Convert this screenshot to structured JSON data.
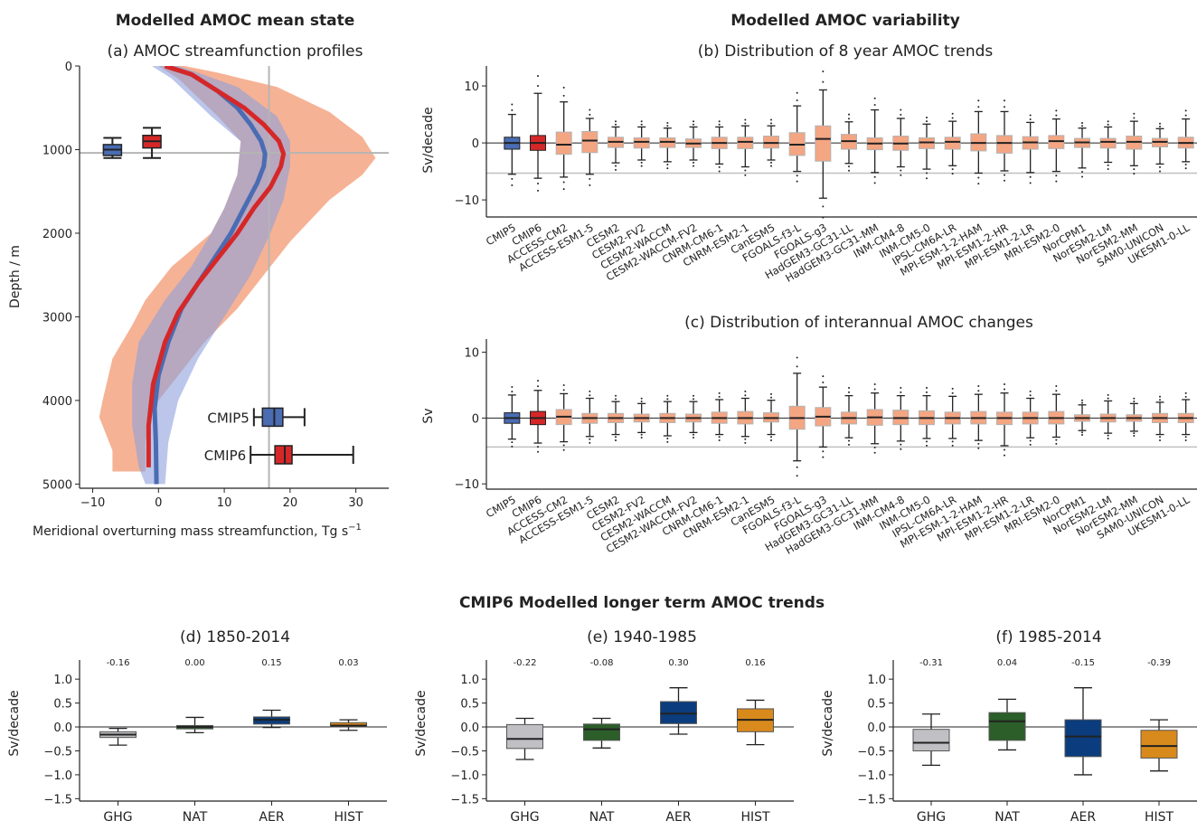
{
  "headings": {
    "mean_state": "Modelled AMOC mean state",
    "variability": "Modelled AMOC variability",
    "longer_term": "CMIP6 Modelled longer term AMOC trends"
  },
  "colors": {
    "cmip5": "#4a6cb3",
    "cmip6": "#d62728",
    "salmon": "#f4a582",
    "GHG": "#c0c0c4",
    "NAT": "#2b5e28",
    "AER": "#0b3d7e",
    "HIST": "#d98a1c"
  },
  "chart_data": [
    {
      "id": "a",
      "type": "line",
      "title": "(a) AMOC streamfunction profiles",
      "xlabel": "Meridional overturning mass streamfunction, Tg s",
      "xlabel_sup": "−1",
      "ylabel": "Depth / m",
      "xlim": [
        -12,
        35
      ],
      "ylim": [
        5050,
        0
      ],
      "xticks": [
        -10,
        0,
        10,
        20,
        30
      ],
      "yticks": [
        0,
        1000,
        2000,
        3000,
        4000,
        5000
      ],
      "reference_lines": {
        "x": 16.8,
        "depth": 1040
      },
      "series": [
        {
          "name": "CMIP5",
          "mean": [
            [
              1,
              0
            ],
            [
              5,
              100
            ],
            [
              9,
              300
            ],
            [
              12,
              500
            ],
            [
              14,
              700
            ],
            [
              15.6,
              900
            ],
            [
              16.2,
              1050
            ],
            [
              16,
              1200
            ],
            [
              15,
              1400
            ],
            [
              13,
              1700
            ],
            [
              11,
              2000
            ],
            [
              8.5,
              2300
            ],
            [
              6,
              2600
            ],
            [
              3.5,
              2900
            ],
            [
              1.5,
              3300
            ],
            [
              0,
              3700
            ],
            [
              -0.6,
              4100
            ],
            [
              -0.4,
              4500
            ],
            [
              -0.3,
              5000
            ]
          ],
          "envelope": [
            [
              -1,
              0
            ],
            [
              2,
              150
            ],
            [
              8,
              600
            ],
            [
              12.5,
              900
            ],
            [
              12,
              1300
            ],
            [
              10,
              1700
            ],
            [
              8,
              2000
            ],
            [
              5,
              2400
            ],
            [
              1,
              2800
            ],
            [
              -3,
              3300
            ],
            [
              -4,
              3800
            ],
            [
              -4,
              4300
            ],
            [
              -3,
              4800
            ],
            [
              -2,
              5000
            ],
            [
              1,
              5000
            ],
            [
              1.5,
              4500
            ],
            [
              3,
              4000
            ],
            [
              6,
              3500
            ],
            [
              10,
              3000
            ],
            [
              14,
              2500
            ],
            [
              17,
              2000
            ],
            [
              19,
              1600
            ],
            [
              20,
              1200
            ],
            [
              20,
              900
            ],
            [
              18,
              600
            ],
            [
              12,
              250
            ],
            [
              6,
              80
            ],
            [
              3,
              0
            ]
          ]
        },
        {
          "name": "CMIP6",
          "mean": [
            [
              1,
              0
            ],
            [
              5,
              100
            ],
            [
              9,
              300
            ],
            [
              13,
              500
            ],
            [
              16,
              700
            ],
            [
              18.3,
              900
            ],
            [
              19,
              1050
            ],
            [
              18.6,
              1200
            ],
            [
              17,
              1450
            ],
            [
              14.5,
              1700
            ],
            [
              12,
              2000
            ],
            [
              9,
              2300
            ],
            [
              6,
              2600
            ],
            [
              3,
              2950
            ],
            [
              1,
              3300
            ],
            [
              -0.8,
              3800
            ],
            [
              -1.5,
              4300
            ],
            [
              -1.5,
              4800
            ]
          ],
          "envelope": [
            [
              0,
              0
            ],
            [
              3,
              150
            ],
            [
              9,
              600
            ],
            [
              12.5,
              900
            ],
            [
              12,
              1300
            ],
            [
              10,
              1700
            ],
            [
              8,
              2000
            ],
            [
              2,
              2400
            ],
            [
              -2,
              2800
            ],
            [
              -4,
              3100
            ],
            [
              -7,
              3500
            ],
            [
              -8.5,
              4000
            ],
            [
              -9,
              4200
            ],
            [
              -7,
              4600
            ],
            [
              -7,
              4850
            ],
            [
              -2,
              4850
            ],
            [
              -2,
              4500
            ],
            [
              -1,
              4100
            ],
            [
              3,
              3700
            ],
            [
              7,
              3300
            ],
            [
              12,
              2900
            ],
            [
              16,
              2500
            ],
            [
              20,
              2100
            ],
            [
              26,
              1600
            ],
            [
              31,
              1300
            ],
            [
              33,
              1100
            ],
            [
              31,
              850
            ],
            [
              26,
              550
            ],
            [
              18,
              250
            ],
            [
              9,
              80
            ],
            [
              4,
              0
            ]
          ]
        }
      ],
      "boxplots": [
        {
          "name": "CMIP5",
          "axis": "depth",
          "min": 860,
          "q1": 940,
          "median": 1000,
          "q3": 1070,
          "max": 1100
        },
        {
          "name": "CMIP6",
          "axis": "depth",
          "min": 740,
          "q1": 830,
          "median": 900,
          "q3": 980,
          "max": 1100
        },
        {
          "name": "CMIP5",
          "axis": "strength",
          "min": 14.5,
          "q1": 15.8,
          "median": 17.6,
          "q3": 18.9,
          "max": 22.2
        },
        {
          "name": "CMIP6",
          "axis": "strength",
          "min": 14,
          "q1": 17.7,
          "median": 19.2,
          "q3": 20.3,
          "max": 29.6
        }
      ]
    },
    {
      "id": "b",
      "type": "box",
      "title": "(b) Distribution of 8 year AMOC trends",
      "ylabel": "Sv/decade",
      "ylim": [
        -13,
        13.5
      ],
      "yticks": [
        -10,
        0,
        10
      ],
      "hline": -5.3,
      "categories": [
        "CMIP5",
        "CMIP6",
        "ACCESS-CM2",
        "ACCESS-ESM1-5",
        "CESM2",
        "CESM2-FV2",
        "CESM2-WACCM",
        "CESM2-WACCM-FV2",
        "CNRM-CM6-1",
        "CNRM-ESM2-1",
        "CanESM5",
        "FGOALS-f3-L",
        "FGOALS-g3",
        "HadGEM3-GC31-LL",
        "HadGEM3-GC31-MM",
        "INM-CM4-8",
        "INM-CM5-0",
        "IPSL-CM6A-LR",
        "MPI-ESM-1-2-HAM",
        "MPI-ESM1-2-HR",
        "MPI-ESM1-2-LR",
        "MRI-ESM2-0",
        "NorCPM1",
        "NorESM2-LM",
        "NorESM2-MM",
        "SAM0-UNICON",
        "UKESM1-0-LL"
      ],
      "boxes": [
        [
          -5.5,
          -1.1,
          0,
          1,
          5
        ],
        [
          -6.2,
          -1.3,
          0,
          1.3,
          8.7
        ],
        [
          -6,
          -2,
          -0.3,
          1.9,
          7.2
        ],
        [
          -5.5,
          -1.7,
          0.4,
          2,
          4.3
        ],
        [
          -3.5,
          -0.8,
          0.2,
          1,
          2.8
        ],
        [
          -3,
          -0.9,
          0.2,
          0.9,
          2.8
        ],
        [
          -3.3,
          -0.8,
          0.2,
          0.9,
          2.6
        ],
        [
          -3,
          -0.8,
          -0.1,
          0.7,
          2.8
        ],
        [
          -3.7,
          -1,
          0,
          1,
          2.8
        ],
        [
          -4.2,
          -1,
          0.2,
          1,
          3
        ],
        [
          -3,
          -0.9,
          0,
          1.2,
          3
        ],
        [
          -5,
          -2.2,
          -0.3,
          1.8,
          6.5
        ],
        [
          -9.7,
          -3.2,
          0.7,
          3,
          9.3
        ],
        [
          -3.6,
          -1.1,
          0.3,
          1.5,
          3.7
        ],
        [
          -5.2,
          -1.2,
          -0.1,
          0.9,
          5.8
        ],
        [
          -4.2,
          -1.3,
          -0.1,
          1.2,
          4.3
        ],
        [
          -4.6,
          -1,
          0.1,
          0.9,
          3.3
        ],
        [
          -4,
          -1.1,
          0.2,
          1,
          3.8
        ],
        [
          -5.3,
          -1.4,
          0,
          1.6,
          5.5
        ],
        [
          -4.9,
          -1.8,
          0,
          1.3,
          5.5
        ],
        [
          -5.2,
          -1.1,
          0.1,
          1.1,
          3.6
        ],
        [
          -5,
          -1,
          0.3,
          1.3,
          4.2
        ],
        [
          -4.4,
          -0.8,
          0.1,
          0.8,
          2.6
        ],
        [
          -3.4,
          -0.9,
          0.2,
          0.8,
          2.8
        ],
        [
          -4,
          -1.1,
          0.2,
          1.2,
          3.8
        ],
        [
          -3.7,
          -0.7,
          0.2,
          0.8,
          2.5
        ],
        [
          -3.3,
          -0.9,
          0,
          1,
          4.2
        ]
      ]
    },
    {
      "id": "c",
      "type": "box",
      "title": "(c) Distribution of interannual AMOC changes",
      "ylabel": "Sv",
      "ylim": [
        -10.8,
        12
      ],
      "yticks": [
        -10,
        0,
        10
      ],
      "hline": -4.4,
      "categories": [
        "CMIP5",
        "CMIP6",
        "ACCESS-CM2",
        "ACCESS-ESM1-5",
        "CESM2",
        "CESM2-FV2",
        "CESM2-WACCM",
        "CESM2-WACCM-FV2",
        "CNRM-CM6-1",
        "CNRM-ESM2-1",
        "CanESM5",
        "FGOALS-f3-L",
        "FGOALS-g3",
        "HadGEM3-GC31-LL",
        "HadGEM3-GC31-MM",
        "INM-CM4-8",
        "INM-CM5-0",
        "IPSL-CM6A-LR",
        "MPI-ESM-1-2-HAM",
        "MPI-ESM1-2-HR",
        "MPI-ESM1-2-LR",
        "MRI-ESM2-0",
        "NorCPM1",
        "NorESM2-LM",
        "NorESM2-MM",
        "SAM0-UNICON",
        "UKESM1-0-LL"
      ],
      "boxes": [
        [
          -3.2,
          -0.8,
          0,
          0.8,
          3.5
        ],
        [
          -3.8,
          -1,
          0,
          1,
          4.2
        ],
        [
          -3.6,
          -1,
          0.2,
          1.3,
          3.7
        ],
        [
          -2.8,
          -0.8,
          0,
          0.7,
          3
        ],
        [
          -2.5,
          -0.7,
          0,
          0.7,
          2.5
        ],
        [
          -2.2,
          -0.6,
          0,
          0.6,
          2.2
        ],
        [
          -2.7,
          -0.7,
          0,
          0.7,
          2.5
        ],
        [
          -2.2,
          -0.6,
          0,
          0.6,
          2.5
        ],
        [
          -2.5,
          -0.8,
          0,
          0.9,
          2.8
        ],
        [
          -2.8,
          -0.9,
          0,
          1,
          3
        ],
        [
          -2.5,
          -0.6,
          0,
          0.8,
          2.7
        ],
        [
          -6.5,
          -1.7,
          0,
          1.8,
          6.8
        ],
        [
          -4.4,
          -1.2,
          0.2,
          1.6,
          4.7
        ],
        [
          -3,
          -0.9,
          0,
          0.9,
          3.4
        ],
        [
          -3.9,
          -1.1,
          0.1,
          1.3,
          3.8
        ],
        [
          -3.5,
          -1,
          0,
          1.2,
          3.4
        ],
        [
          -3.1,
          -1,
          0,
          1.1,
          3.4
        ],
        [
          -3.1,
          -0.9,
          0,
          0.9,
          3.3
        ],
        [
          -3.4,
          -0.9,
          0,
          1,
          3.6
        ],
        [
          -4.2,
          -1,
          0,
          0.9,
          3.8
        ],
        [
          -3,
          -0.9,
          0,
          0.9,
          3
        ],
        [
          -2.9,
          -0.9,
          0,
          1,
          3.6
        ],
        [
          -1.9,
          -0.5,
          0,
          0.5,
          2
        ],
        [
          -2.3,
          -0.6,
          0,
          0.6,
          2.6
        ],
        [
          -2,
          -0.5,
          0,
          0.5,
          2.2
        ],
        [
          -2.5,
          -0.7,
          0,
          0.7,
          2.4
        ],
        [
          -2.5,
          -0.7,
          0,
          0.7,
          2.8
        ]
      ]
    },
    {
      "id": "d",
      "type": "box",
      "title": "(d) 1850-2014",
      "ylabel": "Sv/decade",
      "ylim": [
        -1.55,
        1.4
      ],
      "yticks": [
        -1.5,
        -1.0,
        -0.5,
        0.0,
        0.5,
        1.0
      ],
      "ytick_labels": [
        "−1.5",
        "−1.0",
        "−0.5",
        "0.0",
        "0.5",
        "1.0"
      ],
      "categories": [
        "GHG",
        "NAT",
        "AER",
        "HIST"
      ],
      "annotations": [
        "-0.16",
        "0.00",
        "0.15",
        "0.03"
      ],
      "boxes": [
        [
          -0.38,
          -0.22,
          -0.16,
          -0.1,
          -0.03
        ],
        [
          -0.12,
          -0.04,
          0,
          0.03,
          0.2
        ],
        [
          -0.01,
          0.06,
          0.15,
          0.21,
          0.35
        ],
        [
          -0.07,
          0,
          0.03,
          0.09,
          0.15
        ]
      ]
    },
    {
      "id": "e",
      "type": "box",
      "title": "(e) 1940-1985",
      "ylabel": "Sv/decade",
      "ylim": [
        -1.55,
        1.4
      ],
      "yticks": [
        -1.5,
        -1.0,
        -0.5,
        0.0,
        0.5,
        1.0
      ],
      "ytick_labels": [
        "−1.5",
        "−1.0",
        "−0.5",
        "0.0",
        "0.5",
        "1.0"
      ],
      "categories": [
        "GHG",
        "NAT",
        "AER",
        "HIST"
      ],
      "annotations": [
        "-0.22",
        "-0.08",
        "0.30",
        "0.16"
      ],
      "boxes": [
        [
          -0.68,
          -0.45,
          -0.25,
          0.05,
          0.18
        ],
        [
          -0.44,
          -0.28,
          -0.05,
          0.06,
          0.18
        ],
        [
          -0.15,
          0.07,
          0.28,
          0.53,
          0.82
        ],
        [
          -0.37,
          -0.1,
          0.15,
          0.38,
          0.56
        ]
      ]
    },
    {
      "id": "f",
      "type": "box",
      "title": "(f) 1985-2014",
      "ylabel": "Sv/decade",
      "ylim": [
        -1.55,
        1.4
      ],
      "yticks": [
        -1.5,
        -1.0,
        -0.5,
        0.0,
        0.5,
        1.0
      ],
      "ytick_labels": [
        "−1.5",
        "−1.0",
        "−0.5",
        "0.0",
        "0.5",
        "1.0"
      ],
      "categories": [
        "GHG",
        "NAT",
        "AER",
        "HIST"
      ],
      "annotations": [
        "-0.31",
        "0.04",
        "-0.15",
        "-0.39"
      ],
      "boxes": [
        [
          -0.8,
          -0.5,
          -0.33,
          -0.05,
          0.27
        ],
        [
          -0.48,
          -0.28,
          0.12,
          0.3,
          0.58
        ],
        [
          -1.0,
          -0.62,
          -0.2,
          0.15,
          0.82
        ],
        [
          -0.92,
          -0.65,
          -0.4,
          -0.07,
          0.15
        ]
      ]
    }
  ]
}
